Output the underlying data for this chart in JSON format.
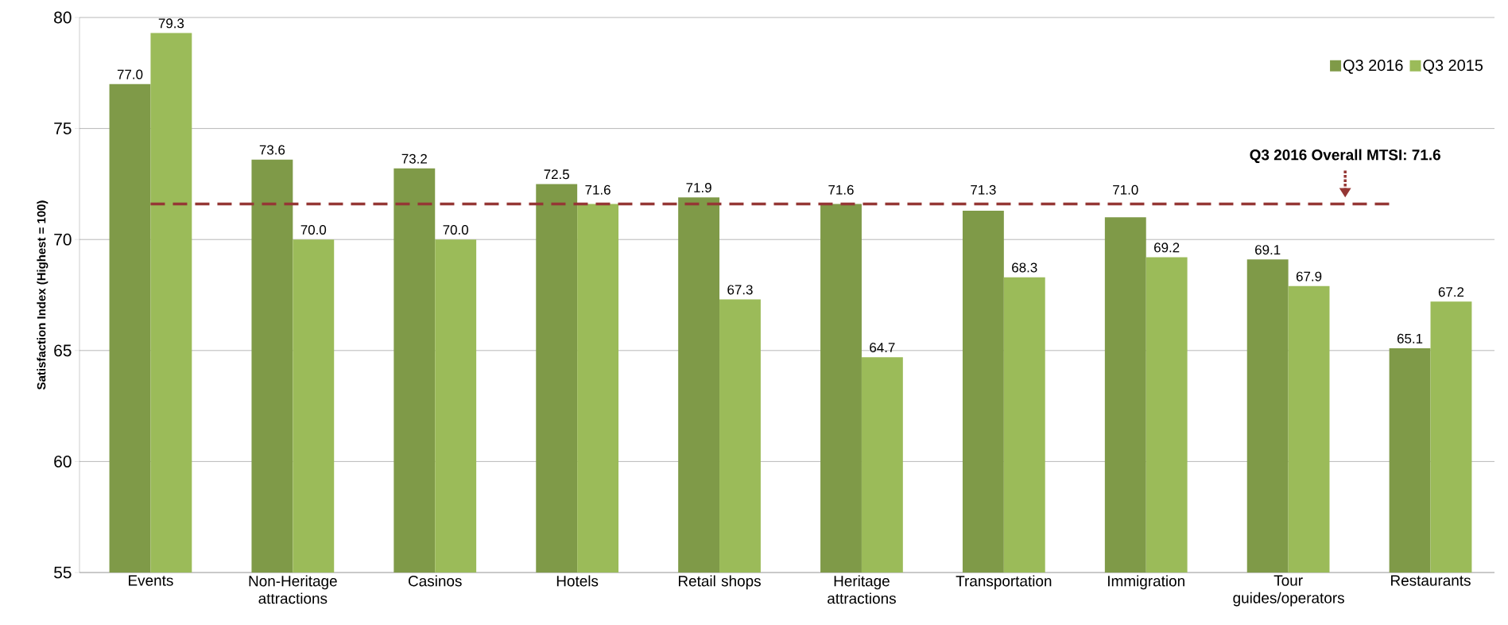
{
  "chart_data": {
    "type": "bar",
    "ylabel": "Satisfaction Index (Highest = 100)",
    "categories": [
      "Events",
      "Non-Heritage attractions",
      "Casinos",
      "Hotels",
      "Retail shops",
      "Heritage attractions",
      "Transportation",
      "Immigration",
      "Tour guides/operators",
      "Restaurants"
    ],
    "series": [
      {
        "name": "Q3 2016",
        "color": "#7f9a48",
        "values": [
          77.0,
          73.6,
          73.2,
          72.5,
          71.9,
          71.6,
          71.3,
          71.0,
          69.1,
          65.1
        ],
        "value_labels": [
          "77.0",
          "73.6",
          "73.2",
          "72.5",
          "71.9",
          "71.6",
          "71.3",
          "71.0",
          "69.1",
          "65.1"
        ]
      },
      {
        "name": "Q3 2015",
        "color": "#9bbb59",
        "values": [
          79.3,
          70.0,
          70.0,
          71.6,
          67.3,
          64.7,
          68.3,
          69.2,
          67.9,
          67.2
        ],
        "value_labels": [
          "79.3",
          "70.0",
          "70.0",
          "71.6",
          "67.3",
          "64.7",
          "68.3",
          "69.2",
          "67.9",
          "67.2"
        ]
      }
    ],
    "ylim": [
      55,
      80
    ],
    "yticks": [
      55,
      60,
      65,
      70,
      75,
      80
    ],
    "grid": "y",
    "legend": "top right",
    "ref_lines": [
      {
        "axis": "y",
        "value": 71.6,
        "label": "Q3 2016 Overall MTSI: 71.6",
        "color": "#953735",
        "line_style": "dashed"
      }
    ]
  }
}
